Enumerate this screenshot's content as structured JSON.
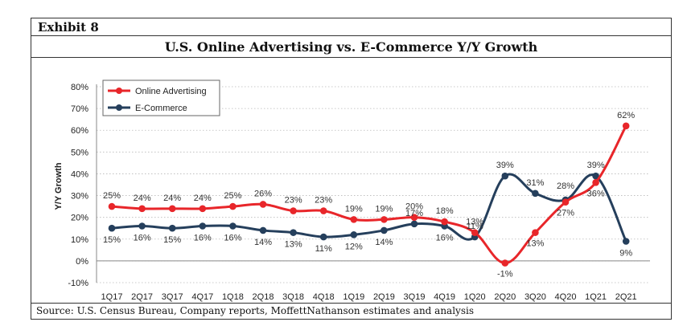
{
  "exhibit_label": "Exhibit 8",
  "source": "Source: U.S. Census Bureau, Company reports, MoffettNathanson estimates and analysis",
  "chart_data": {
    "type": "line",
    "title": "U.S. Online Advertising vs. E-Commerce Y/Y Growth",
    "ylabel": "Y/Y Growth",
    "xlabel": "",
    "ylim": [
      -10,
      80
    ],
    "yticks": [
      "-10%",
      "0%",
      "10%",
      "20%",
      "30%",
      "40%",
      "50%",
      "60%",
      "70%",
      "80%"
    ],
    "grid": "horizontal-dotted",
    "legend": "top-left",
    "categories": [
      "1Q17",
      "2Q17",
      "3Q17",
      "4Q17",
      "1Q18",
      "2Q18",
      "3Q18",
      "4Q18",
      "1Q19",
      "2Q19",
      "3Q19",
      "4Q19",
      "1Q20",
      "2Q20",
      "3Q20",
      "4Q20",
      "1Q21",
      "2Q21"
    ],
    "series": [
      {
        "name": "Online Advertising",
        "color": "#e8262a",
        "values": [
          25,
          24,
          24,
          24,
          25,
          26,
          23,
          23,
          19,
          19,
          20,
          18,
          13,
          -1,
          13,
          27,
          36,
          62
        ],
        "labels": [
          "25%",
          "24%",
          "24%",
          "24%",
          "25%",
          "26%",
          "23%",
          "23%",
          "19%",
          "19%",
          "20%",
          "18%",
          "13%",
          "-1%",
          "13%",
          "27%",
          "36%",
          "62%"
        ]
      },
      {
        "name": "E-Commerce",
        "color": "#253f5c",
        "values": [
          15,
          16,
          15,
          16,
          16,
          14,
          13,
          11,
          12,
          14,
          17,
          16,
          11,
          39,
          31,
          28,
          39,
          9
        ],
        "labels": [
          "15%",
          "16%",
          "15%",
          "16%",
          "16%",
          "14%",
          "13%",
          "11%",
          "12%",
          "14%",
          "17%",
          "16%",
          "11%",
          "39%",
          "31%",
          "28%",
          "39%",
          "9%"
        ]
      }
    ]
  }
}
